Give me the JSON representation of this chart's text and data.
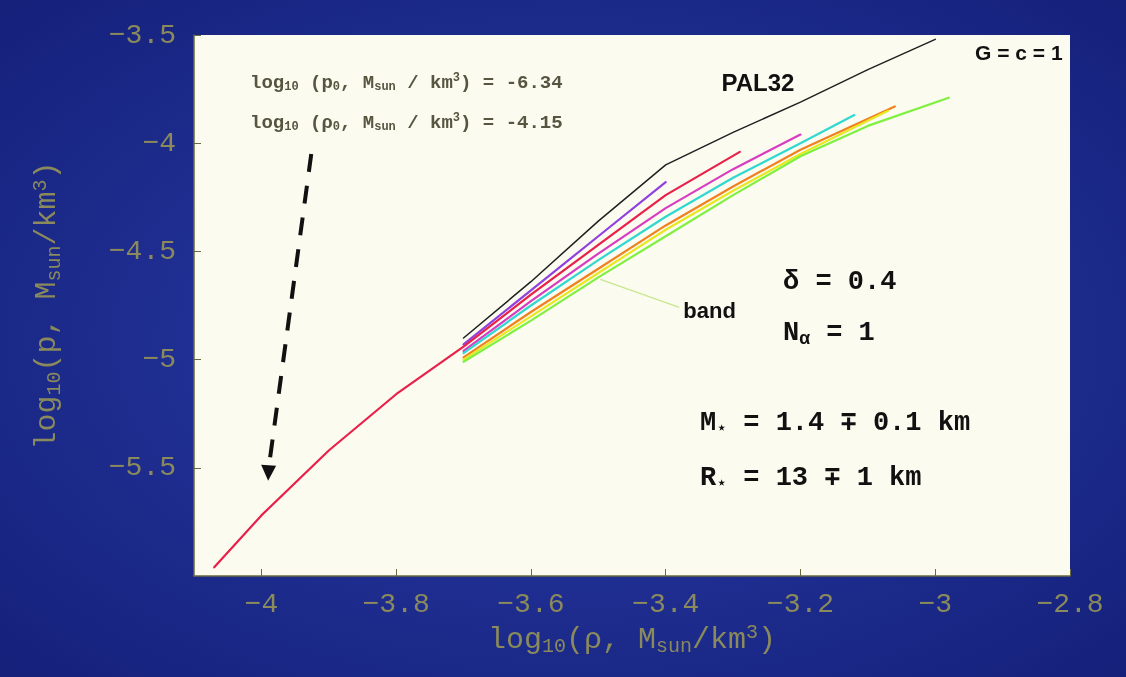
{
  "chart_data": {
    "type": "line",
    "xlabel": "log$_{10}$(ρ, M$_{sun}$/km$^{3}$)",
    "ylabel": "log$_{10}$(p, M$_{sun}$/km$^{3}$)",
    "xlim": [
      -4.1,
      -2.8
    ],
    "xticks": [
      -4,
      -3.8,
      -3.6,
      -3.4,
      -3.2,
      -3,
      -2.8
    ],
    "ylim": [
      -6,
      -3.5
    ],
    "yticks": [
      -5.5,
      -5,
      -4.5,
      -4,
      -3.5
    ],
    "grid": false,
    "legend": false,
    "marker": "none",
    "line_style": "solid",
    "series": [
      {
        "color": "#9040e0",
        "x": [
          -3.7,
          -3.6,
          -3.5,
          -3.4
        ],
        "values": [
          -4.93,
          -4.68,
          -4.43,
          -4.18
        ]
      },
      {
        "color": "#e8204a",
        "x": [
          -4.07,
          -4,
          -3.9,
          -3.8,
          -3.7,
          -3.6,
          -3.5,
          -3.4,
          -3.29
        ],
        "values": [
          -5.96,
          -5.72,
          -5.42,
          -5.16,
          -4.94,
          -4.7,
          -4.47,
          -4.24,
          -4.04
        ]
      },
      {
        "color": "#d83cc0",
        "x": [
          -3.7,
          -3.6,
          -3.5,
          -3.4,
          -3.3,
          -3.2
        ],
        "values": [
          -4.96,
          -4.73,
          -4.51,
          -4.3,
          -4.12,
          -3.96
        ]
      },
      {
        "color": "#30d8d0",
        "x": [
          -3.7,
          -3.6,
          -3.5,
          -3.4,
          -3.3,
          -3.2,
          -3.12
        ],
        "values": [
          -4.97,
          -4.75,
          -4.54,
          -4.34,
          -4.16,
          -4,
          -3.87
        ]
      },
      {
        "color": "#f08020",
        "x": [
          -3.7,
          -3.6,
          -3.5,
          -3.4,
          -3.3,
          -3.2,
          -3.06
        ],
        "values": [
          -4.99,
          -4.78,
          -4.58,
          -4.38,
          -4.2,
          -4.03,
          -3.83
        ]
      },
      {
        "color": "#e8e820",
        "x": [
          -3.7,
          -3.6,
          -3.5,
          -3.4,
          -3.3,
          -3.2,
          -3.07
        ],
        "values": [
          -5,
          -4.8,
          -4.6,
          -4.4,
          -4.22,
          -4.05,
          -3.85
        ]
      },
      {
        "color": "#80f040",
        "x": [
          -3.7,
          -3.6,
          -3.5,
          -3.4,
          -3.3,
          -3.2,
          -3.1,
          -2.98
        ],
        "values": [
          -5.01,
          -4.82,
          -4.62,
          -4.43,
          -4.24,
          -4.06,
          -3.92,
          -3.79
        ]
      },
      {
        "name": "PAL32",
        "color": "#202020",
        "x": [
          -3.7,
          -3.6,
          -3.5,
          -3.4,
          -3.3,
          -3.2,
          -3.1,
          -3
        ],
        "values": [
          -4.9,
          -4.64,
          -4.36,
          -4.1,
          -3.95,
          -3.81,
          -3.66,
          -3.52
        ]
      }
    ],
    "annotations": [
      "log$_{10}$ (p$_{0}$, M$_{sun}$ / km$^{3}$) = -6.34",
      "log$_{10}$ (ρ$_{0}$, M$_{sun}$ / km$^{3}$) = -4.15",
      "G = c = 1",
      {
        "text": "band",
        "x": -3.5,
        "y": -4.62
      },
      "δ = 0.4",
      "N$_{α}$ = 1",
      "M$_{⋆}$ = 1.4 ∓ 0.1 km",
      "R$_{⋆}$ = 13 ∓ 1 km"
    ]
  }
}
